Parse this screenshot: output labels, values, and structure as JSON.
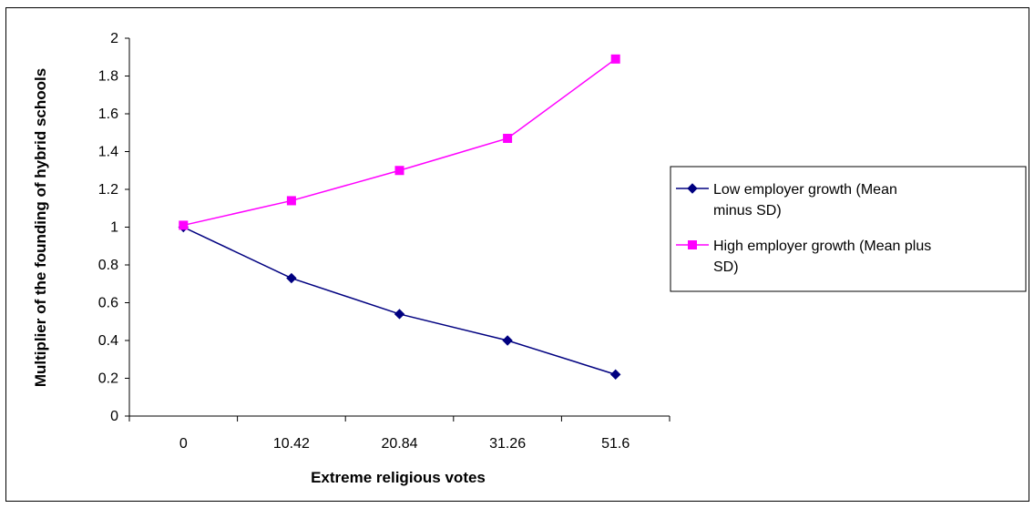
{
  "chart_data": {
    "type": "line",
    "title": "",
    "xlabel": "Extreme religious votes",
    "ylabel": "Multiplier of the founding of hybrid schools",
    "categories": [
      "0",
      "10.42",
      "20.84",
      "31.26",
      "51.6"
    ],
    "ylim": [
      0,
      2
    ],
    "yticks": [
      "0",
      "0.2",
      "0.4",
      "0.6",
      "0.8",
      "1",
      "1.2",
      "1.4",
      "1.6",
      "1.8",
      "2"
    ],
    "grid": false,
    "legend_position": "right",
    "series": [
      {
        "name": "Low employer growth (Mean minus SD)",
        "legend_lines": [
          "Low employer growth (Mean",
          "minus SD)"
        ],
        "values": [
          1.0,
          0.73,
          0.54,
          0.4,
          0.22
        ],
        "color": "#000080",
        "marker": "diamond"
      },
      {
        "name": "High employer growth (Mean plus SD)",
        "legend_lines": [
          "High employer growth (Mean plus",
          "SD)"
        ],
        "values": [
          1.01,
          1.14,
          1.3,
          1.47,
          1.89
        ],
        "color": "#FF00FF",
        "marker": "square"
      }
    ]
  }
}
